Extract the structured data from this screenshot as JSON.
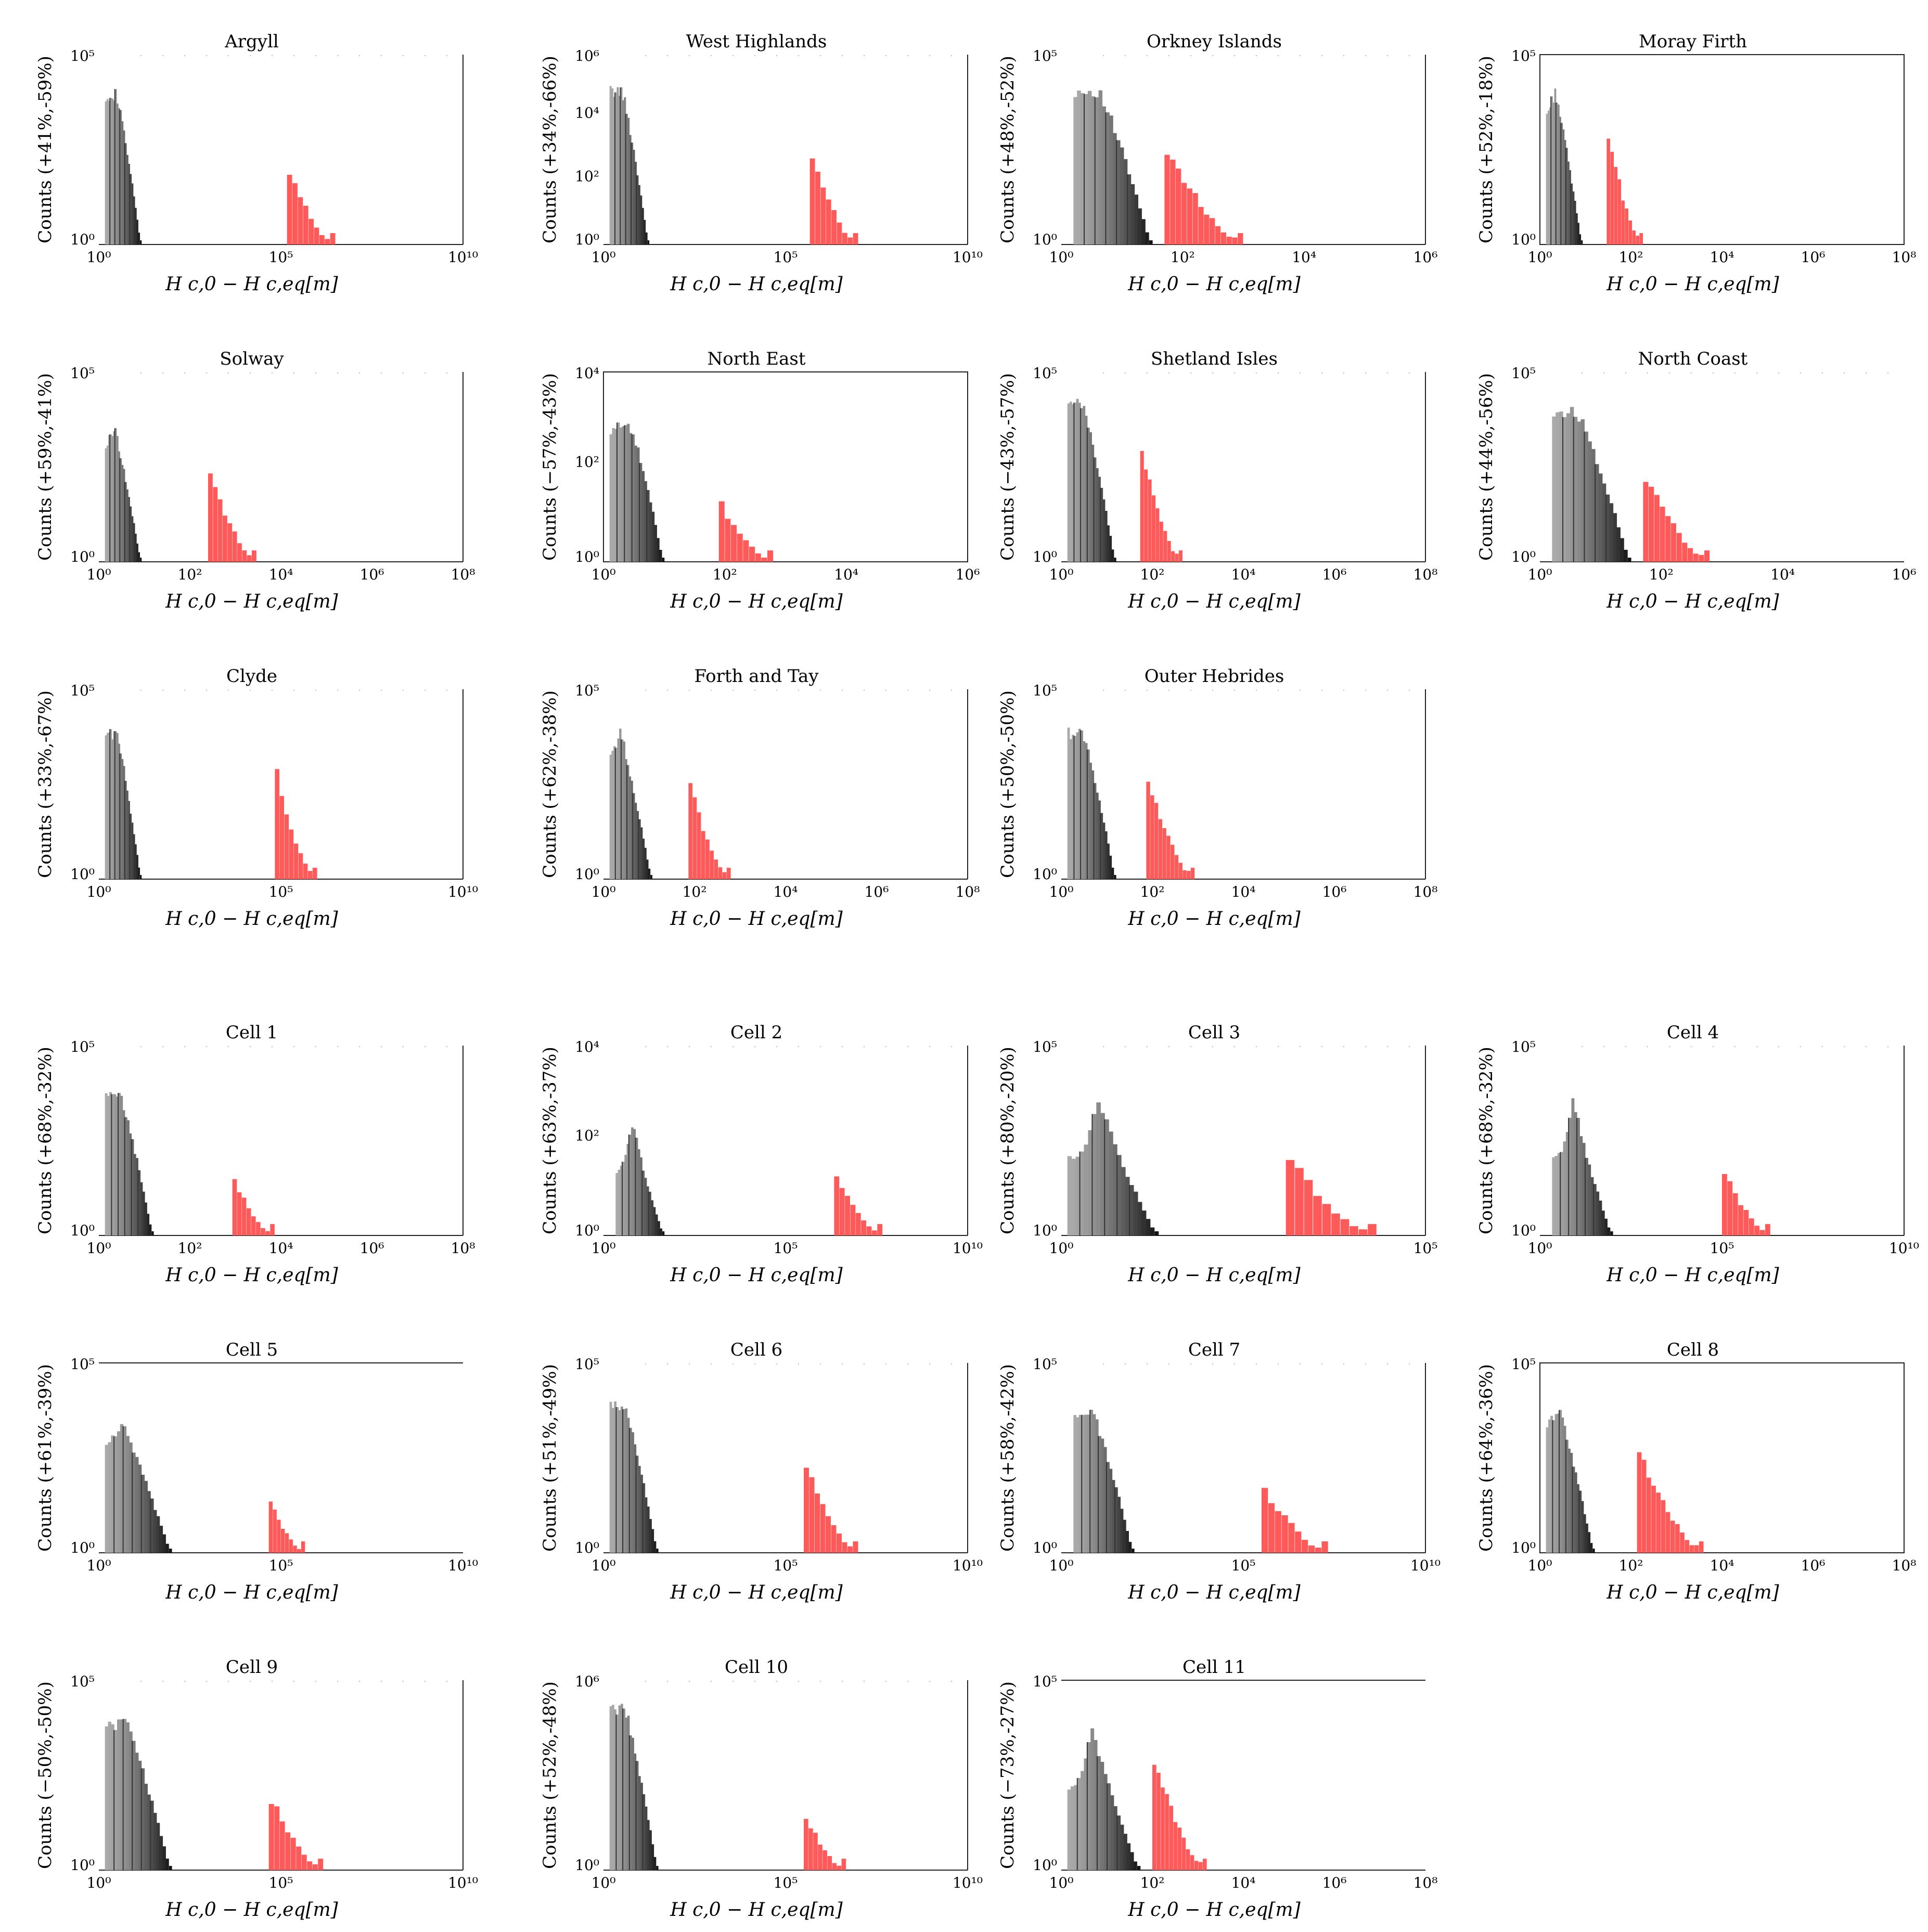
{
  "panels": [
    {
      "title": "Argyll",
      "ylabel": "Counts (+41%,-59%)",
      "xlabel": "H_{c,0} − H_{c,eq}[m]",
      "xticks": [
        "10⁰",
        "10⁵",
        "10¹⁰"
      ],
      "yticks": [
        "10⁵",
        "10⁰"
      ],
      "frame": "open",
      "gray": {
        "start": 1,
        "end": 7,
        "peak": 4.1,
        "shape": "flat"
      },
      "red": {
        "start": 31,
        "end": 39,
        "peak": 2.0,
        "bars": 9
      }
    },
    {
      "title": "West Highlands",
      "ylabel": "Counts (+34%,-66%)",
      "xlabel": "H_{c,0} − H_{c,eq}[m]",
      "xticks": [
        "10⁰",
        "10⁵",
        "10¹⁰"
      ],
      "yticks": [
        "10⁶",
        "10⁴",
        "10²",
        "10⁰"
      ],
      "frame": "open",
      "gray": {
        "start": 1,
        "end": 7.5,
        "peak": 4.2,
        "shape": "flat"
      },
      "red": {
        "start": 34,
        "end": 42,
        "peak": 2.4,
        "bars": 9
      }
    },
    {
      "title": "Orkney Islands",
      "ylabel": "Counts (+48%,-52%)",
      "xlabel": "H_{c,0} − H_{c,eq}[m]",
      "xticks": [
        "10⁰",
        "10²",
        "10⁴",
        "10⁶"
      ],
      "yticks": [
        "10⁵",
        "10⁰"
      ],
      "frame": "open",
      "gray": {
        "start": 2,
        "end": 15,
        "peak": 4.2,
        "shape": "flat"
      },
      "red": {
        "start": 17,
        "end": 30,
        "peak": 2.7,
        "bars": 14
      }
    },
    {
      "title": "Moray Firth",
      "ylabel": "Counts (+52%,-18%)",
      "xlabel": "H_{c,0} − H_{c,eq}[m]",
      "xticks": [
        "10⁰",
        "10²",
        "10⁴",
        "10⁶",
        "10⁸"
      ],
      "yticks": [
        "10⁵",
        "10⁰"
      ],
      "frame": "box",
      "gray": {
        "start": 1,
        "end": 7,
        "peak": 4.2,
        "shape": "peak"
      },
      "red": {
        "start": 11,
        "end": 17,
        "peak": 3.1,
        "bars": 10
      }
    },
    {
      "title": "Solway",
      "ylabel": "Counts (+59%,-41%)",
      "xlabel": "H_{c,0} − H_{c,eq}[m]",
      "xticks": [
        "10⁰",
        "10²",
        "10⁴",
        "10⁶",
        "10⁸"
      ],
      "yticks": [
        "10⁵",
        "10⁰"
      ],
      "frame": "open",
      "gray": {
        "start": 1,
        "end": 7,
        "peak": 3.7,
        "shape": "peak"
      },
      "red": {
        "start": 18,
        "end": 26,
        "peak": 2.5,
        "bars": 10
      }
    },
    {
      "title": "North East",
      "ylabel": "Counts (−57%,-43%)",
      "xlabel": "H_{c,0} − H_{c,eq}[m]",
      "xticks": [
        "10⁰",
        "10²",
        "10⁴",
        "10⁶"
      ],
      "yticks": [
        "10⁴",
        "10²",
        "10⁰"
      ],
      "frame": "box",
      "gray": {
        "start": 1,
        "end": 10,
        "peak": 3.9,
        "shape": "round"
      },
      "red": {
        "start": 19,
        "end": 28,
        "peak": 1.6,
        "bars": 9
      }
    },
    {
      "title": "Shetland Isles",
      "ylabel": "Counts (−43%,-57%)",
      "xlabel": "H_{c,0} − H_{c,eq}[m]",
      "xticks": [
        "10⁰",
        "10²",
        "10⁴",
        "10⁶",
        "10⁸"
      ],
      "yticks": [
        "10⁵",
        "10⁰"
      ],
      "frame": "open",
      "gray": {
        "start": 1,
        "end": 9,
        "peak": 4.3,
        "shape": "flat"
      },
      "red": {
        "start": 13,
        "end": 20,
        "peak": 3.0,
        "bars": 11
      }
    },
    {
      "title": "North Coast",
      "ylabel": "Counts (+44%,-56%)",
      "xlabel": "H_{c,0} − H_{c,eq}[m]",
      "xticks": [
        "10⁰",
        "10²",
        "10⁴",
        "10⁶"
      ],
      "yticks": [
        "10⁵",
        "10⁰"
      ],
      "frame": "none",
      "gray": {
        "start": 2,
        "end": 15,
        "peak": 4.1,
        "shape": "flat"
      },
      "red": {
        "start": 17,
        "end": 28,
        "peak": 2.4,
        "bars": 12
      }
    },
    {
      "title": "Clyde",
      "ylabel": "Counts (+33%,-67%)",
      "xlabel": "H_{c,0} − H_{c,eq}[m]",
      "xticks": [
        "10⁰",
        "10⁵",
        "10¹⁰"
      ],
      "yticks": [
        "10⁵",
        "10⁰"
      ],
      "frame": "open",
      "gray": {
        "start": 1,
        "end": 7,
        "peak": 4.0,
        "shape": "flat"
      },
      "red": {
        "start": 29,
        "end": 36,
        "peak": 2.9,
        "bars": 9
      }
    },
    {
      "title": "Forth and Tay",
      "ylabel": "Counts (+62%,-38%)",
      "xlabel": "H_{c,0} − H_{c,eq}[m]",
      "xticks": [
        "10⁰",
        "10²",
        "10⁴",
        "10⁶",
        "10⁸"
      ],
      "yticks": [
        "10⁵",
        "10⁰"
      ],
      "frame": "open",
      "gray": {
        "start": 1,
        "end": 8,
        "peak": 4.0,
        "shape": "peak"
      },
      "red": {
        "start": 14,
        "end": 21,
        "peak": 2.6,
        "bars": 10
      }
    },
    {
      "title": "Outer Hebrides",
      "ylabel": "Counts (+50%,-50%)",
      "xlabel": "H_{c,0} − H_{c,eq}[m]",
      "xticks": [
        "10⁰",
        "10²",
        "10⁴",
        "10⁶",
        "10⁸"
      ],
      "yticks": [
        "10⁵",
        "10⁰"
      ],
      "frame": "open",
      "gray": {
        "start": 1,
        "end": 9,
        "peak": 4.0,
        "shape": "flat"
      },
      "red": {
        "start": 14,
        "end": 22,
        "peak": 2.8,
        "bars": 12
      }
    },
    {
      "title": "Cell 1",
      "ylabel": "Counts (+68%,-32%)",
      "xlabel": "H_{c,0} − H_{c,eq}[m]",
      "xticks": [
        "10⁰",
        "10²",
        "10⁴",
        "10⁶",
        "10⁸"
      ],
      "yticks": [
        "10⁵",
        "10⁰"
      ],
      "frame": "open",
      "gray": {
        "start": 1,
        "end": 9,
        "peak": 3.8,
        "shape": "flat"
      },
      "red": {
        "start": 22,
        "end": 29,
        "peak": 1.5,
        "bars": 9
      }
    },
    {
      "title": "Cell 2",
      "ylabel": "Counts (+63%,-37%)",
      "xlabel": "H_{c,0} − H_{c,eq}[m]",
      "xticks": [
        "10⁰",
        "10⁵",
        "10¹⁰"
      ],
      "yticks": [
        "10⁴",
        "10²",
        "10⁰"
      ],
      "frame": "open",
      "gray": {
        "start": 2,
        "end": 10,
        "peak": 3.2,
        "shape": "spike"
      },
      "red": {
        "start": 38,
        "end": 46,
        "peak": 1.7,
        "bars": 9
      }
    },
    {
      "title": "Cell 3",
      "ylabel": "Counts (+80%,-20%)",
      "xlabel": "H_{c,0} − H_{c,eq}[m]",
      "xticks": [
        "10⁰",
        "10⁵"
      ],
      "yticks": [
        "10⁵",
        "10⁰"
      ],
      "frame": "open",
      "gray": {
        "start": 1,
        "end": 16,
        "peak": 3.8,
        "shape": "spike"
      },
      "red": {
        "start": 37,
        "end": 52,
        "peak": 2.1,
        "bars": 10
      }
    },
    {
      "title": "Cell 4",
      "ylabel": "Counts (+68%,-32%)",
      "xlabel": "H_{c,0} − H_{c,eq}[m]",
      "xticks": [
        "10⁰",
        "10⁵",
        "10¹⁰"
      ],
      "yticks": [
        "10⁵",
        "10⁰"
      ],
      "frame": "open",
      "gray": {
        "start": 2,
        "end": 12,
        "peak": 3.8,
        "shape": "spike"
      },
      "red": {
        "start": 30,
        "end": 38,
        "peak": 1.8,
        "bars": 9
      }
    },
    {
      "title": "Cell 5",
      "ylabel": "Counts (+61%,-39%)",
      "xlabel": "H_{c,0} − H_{c,eq}[m]",
      "xticks": [
        "10⁰",
        "10⁵",
        "10¹⁰"
      ],
      "yticks": [
        "10⁵",
        "10⁰"
      ],
      "frame": "top",
      "gray": {
        "start": 1,
        "end": 12,
        "peak": 3.5,
        "shape": "peak"
      },
      "red": {
        "start": 28,
        "end": 34,
        "peak": 1.4,
        "bars": 9
      }
    },
    {
      "title": "Cell 6",
      "ylabel": "Counts (+51%,-49%)",
      "xlabel": "H_{c,0} − H_{c,eq}[m]",
      "xticks": [
        "10⁰",
        "10⁵",
        "10¹⁰"
      ],
      "yticks": [
        "10⁵",
        "10⁰"
      ],
      "frame": "open",
      "gray": {
        "start": 1,
        "end": 9,
        "peak": 4.0,
        "shape": "flat"
      },
      "red": {
        "start": 33,
        "end": 42,
        "peak": 2.4,
        "bars": 10
      }
    },
    {
      "title": "Cell 7",
      "ylabel": "Counts (+58%,-42%)",
      "xlabel": "H_{c,0} − H_{c,eq}[m]",
      "xticks": [
        "10⁰",
        "10⁵",
        "10¹⁰"
      ],
      "yticks": [
        "10⁵",
        "10⁰"
      ],
      "frame": "open",
      "gray": {
        "start": 2,
        "end": 12,
        "peak": 3.8,
        "shape": "flat"
      },
      "red": {
        "start": 33,
        "end": 44,
        "peak": 1.8,
        "bars": 10
      }
    },
    {
      "title": "Cell 8",
      "ylabel": "Counts (+64%,-36%)",
      "xlabel": "H_{c,0} − H_{c,eq}[m]",
      "xticks": [
        "10⁰",
        "10²",
        "10⁴",
        "10⁶",
        "10⁸"
      ],
      "yticks": [
        "10⁵",
        "10⁰"
      ],
      "frame": "box",
      "gray": {
        "start": 1,
        "end": 9,
        "peak": 4.0,
        "shape": "peak"
      },
      "red": {
        "start": 16,
        "end": 27,
        "peak": 2.9,
        "bars": 14
      }
    },
    {
      "title": "Cell 9",
      "ylabel": "Counts (−50%,-50%)",
      "xlabel": "H_{c,0} − H_{c,eq}[m]",
      "xticks": [
        "10⁰",
        "10⁵",
        "10¹⁰"
      ],
      "yticks": [
        "10⁵",
        "10⁰"
      ],
      "frame": "open",
      "gray": {
        "start": 1,
        "end": 12,
        "peak": 4.0,
        "shape": "flat"
      },
      "red": {
        "start": 28,
        "end": 37,
        "peak": 2.0,
        "bars": 10
      }
    },
    {
      "title": "Cell 10",
      "ylabel": "Counts (+52%,-48%)",
      "xlabel": "H_{c,0} − H_{c,eq}[m]",
      "xticks": [
        "10⁰",
        "10⁵",
        "10¹⁰"
      ],
      "yticks": [
        "10⁶",
        "10⁰"
      ],
      "frame": "open",
      "gray": {
        "start": 1,
        "end": 9,
        "peak": 4.4,
        "shape": "flat"
      },
      "red": {
        "start": 33,
        "end": 40,
        "peak": 1.5,
        "bars": 9
      }
    },
    {
      "title": "Cell 11",
      "ylabel": "Counts (−73%,-27%)",
      "xlabel": "H_{c,0} − H_{c,eq}[m]",
      "xticks": [
        "10⁰",
        "10²",
        "10⁴",
        "10⁶",
        "10⁸"
      ],
      "yticks": [
        "10⁵",
        "10⁰"
      ],
      "frame": "top",
      "gray": {
        "start": 1,
        "end": 13,
        "peak": 4.0,
        "shape": "spike"
      },
      "red": {
        "start": 15,
        "end": 24,
        "peak": 3.0,
        "bars": 13
      }
    }
  ],
  "chart_data": [
    {
      "type": "bar",
      "title": "Argyll",
      "ylabel": "Counts (+41%,-59%)",
      "xlabel": "H_{c,0} − H_{c,eq}[m]",
      "yscale": "log",
      "xscale": "log",
      "xlim": [
        1,
        10000000000.0
      ],
      "ylim": [
        1,
        100000.0
      ],
      "series": [
        {
          "name": "",
          "values": []
        }
      ]
    }
  ],
  "colors": {
    "gray": "#9e9e9e",
    "dark": "#111111",
    "red": "#ff5a5a",
    "axis": "#222222"
  }
}
